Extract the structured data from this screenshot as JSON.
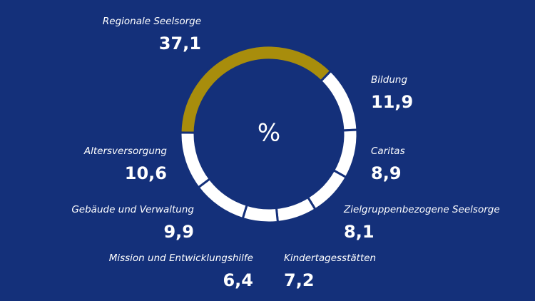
{
  "chart_data": {
    "type": "donut",
    "center_label": "%",
    "categories": [
      "Regionale Seelsorge",
      "Bildung",
      "Caritas",
      "Zielgruppenbezogene Seelsorge",
      "Kindertagesstätten",
      "Mission und Entwicklungshilfe",
      "Gebäude und Verwaltung",
      "Altersversorgung"
    ],
    "values": [
      37.1,
      11.9,
      8.9,
      8.1,
      7.2,
      6.4,
      9.9,
      10.6
    ],
    "value_labels": [
      "37,1",
      "11,9",
      "8,9",
      "8,1",
      "7,2",
      "6,4",
      "9,9",
      "10,6"
    ],
    "colors": [
      "#a88d0c",
      "#ffffff",
      "#ffffff",
      "#ffffff",
      "#ffffff",
      "#ffffff",
      "#ffffff",
      "#ffffff"
    ]
  }
}
